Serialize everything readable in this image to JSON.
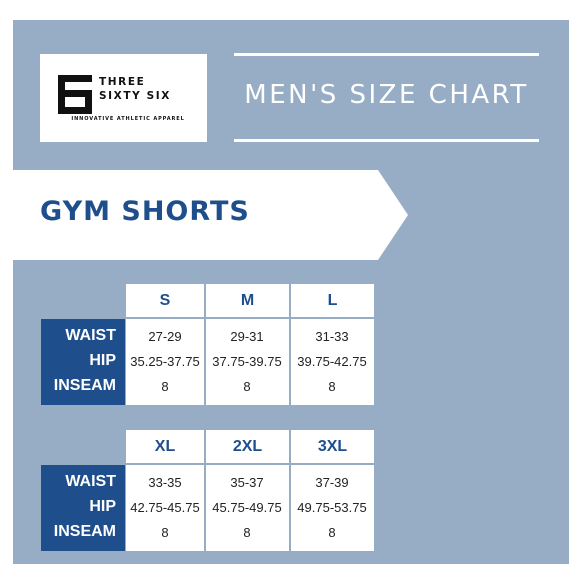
{
  "brand": {
    "line1": "THREE",
    "line2": "SIXTY SIX",
    "tagline": "INNOVATIVE ATHLETIC APPAREL"
  },
  "title": "MEN'S SIZE CHART",
  "product": "GYM SHORTS",
  "colors": {
    "panel": "#97adc6",
    "accent": "#1f4e8c",
    "text_light": "#ffffff"
  },
  "row_labels": [
    "WAIST",
    "HIP",
    "INSEAM"
  ],
  "tables": [
    {
      "sizes": [
        "S",
        "M",
        "L"
      ],
      "rows": [
        [
          "27-29",
          "29-31",
          "31-33"
        ],
        [
          "35.25-37.75",
          "37.75-39.75",
          "39.75-42.75"
        ],
        [
          "8",
          "8",
          "8"
        ]
      ]
    },
    {
      "sizes": [
        "XL",
        "2XL",
        "3XL"
      ],
      "rows": [
        [
          "33-35",
          "35-37",
          "37-39"
        ],
        [
          "42.75-45.75",
          "45.75-49.75",
          "49.75-53.75"
        ],
        [
          "8",
          "8",
          "8"
        ]
      ]
    }
  ]
}
